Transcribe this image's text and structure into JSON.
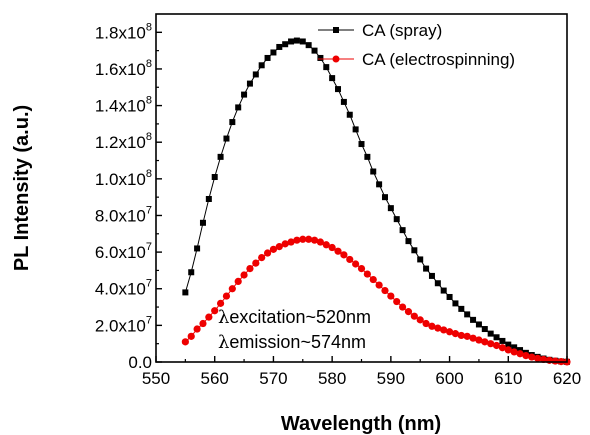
{
  "chart_data": {
    "type": "scatter",
    "title": "",
    "xlabel": "Wavelength (nm)",
    "ylabel": "PL Intensity (a.u.)",
    "xlim": [
      550,
      620
    ],
    "ylim": [
      0,
      190000000
    ],
    "x_ticks": [
      550,
      560,
      570,
      580,
      590,
      600,
      610,
      620
    ],
    "y_ticks": [
      0,
      20000000,
      40000000,
      60000000,
      80000000,
      100000000,
      120000000,
      140000000,
      160000000,
      180000000
    ],
    "x_tick_labels": [
      "550",
      "560",
      "570",
      "580",
      "590",
      "600",
      "610",
      "620"
    ],
    "y_tick_labels": [
      {
        "mantissa": "0.0",
        "exp": ""
      },
      {
        "mantissa": "2.0x10",
        "exp": "7"
      },
      {
        "mantissa": "4.0x10",
        "exp": "7"
      },
      {
        "mantissa": "6.0x10",
        "exp": "7"
      },
      {
        "mantissa": "8.0x10",
        "exp": "7"
      },
      {
        "mantissa": "1.0x10",
        "exp": "8"
      },
      {
        "mantissa": "1.2x10",
        "exp": "8"
      },
      {
        "mantissa": "1.4x10",
        "exp": "8"
      },
      {
        "mantissa": "1.6x10",
        "exp": "8"
      },
      {
        "mantissa": "1.8x10",
        "exp": "8"
      }
    ],
    "legend_position": "top-right",
    "series": [
      {
        "name": "CA (spray)",
        "color": "#000000",
        "marker": "square",
        "points": [
          [
            555,
            38000000
          ],
          [
            556,
            49000000
          ],
          [
            557,
            62000000
          ],
          [
            558,
            76000000
          ],
          [
            559,
            89000000
          ],
          [
            560,
            101000000
          ],
          [
            561,
            112000000
          ],
          [
            562,
            122000000
          ],
          [
            563,
            131000000
          ],
          [
            564,
            139000000
          ],
          [
            565,
            146000000
          ],
          [
            566,
            152000000
          ],
          [
            567,
            157000000
          ],
          [
            568,
            162000000
          ],
          [
            569,
            166000000
          ],
          [
            570,
            169000000
          ],
          [
            571,
            172000000
          ],
          [
            572,
            173500000
          ],
          [
            573,
            175000000
          ],
          [
            574,
            175500000
          ],
          [
            575,
            175000000
          ],
          [
            576,
            173000000
          ],
          [
            577,
            170000000
          ],
          [
            578,
            166000000
          ],
          [
            579,
            161000000
          ],
          [
            580,
            155000000
          ],
          [
            581,
            149000000
          ],
          [
            582,
            142000000
          ],
          [
            583,
            135000000
          ],
          [
            584,
            127000000
          ],
          [
            585,
            119000000
          ],
          [
            586,
            112000000
          ],
          [
            587,
            104000000
          ],
          [
            588,
            97000000
          ],
          [
            589,
            90000000
          ],
          [
            590,
            84000000
          ],
          [
            591,
            78000000
          ],
          [
            592,
            72000000
          ],
          [
            593,
            66000000
          ],
          [
            594,
            61000000
          ],
          [
            595,
            56000000
          ],
          [
            596,
            51000000
          ],
          [
            597,
            47000000
          ],
          [
            598,
            43000000
          ],
          [
            599,
            39000000
          ],
          [
            600,
            35500000
          ],
          [
            601,
            32000000
          ],
          [
            602,
            29000000
          ],
          [
            603,
            26000000
          ],
          [
            604,
            23000000
          ],
          [
            605,
            20500000
          ],
          [
            606,
            18000000
          ],
          [
            607,
            15500000
          ],
          [
            608,
            13500000
          ],
          [
            609,
            11500000
          ],
          [
            610,
            9500000
          ],
          [
            611,
            8000000
          ],
          [
            612,
            6500000
          ],
          [
            613,
            5000000
          ],
          [
            614,
            3800000
          ],
          [
            615,
            2800000
          ],
          [
            616,
            1900000
          ],
          [
            617,
            1200000
          ],
          [
            618,
            700000
          ],
          [
            619,
            300000
          ],
          [
            620,
            100000
          ]
        ]
      },
      {
        "name": "CA (electrospinning)",
        "color": "#ee0000",
        "marker": "circle",
        "points": [
          [
            555,
            11000000
          ],
          [
            556,
            14000000
          ],
          [
            557,
            18000000
          ],
          [
            558,
            21000000
          ],
          [
            559,
            24500000
          ],
          [
            560,
            28000000
          ],
          [
            561,
            32000000
          ],
          [
            562,
            36000000
          ],
          [
            563,
            40000000
          ],
          [
            564,
            44000000
          ],
          [
            565,
            47500000
          ],
          [
            566,
            51000000
          ],
          [
            567,
            54000000
          ],
          [
            568,
            57000000
          ],
          [
            569,
            59500000
          ],
          [
            570,
            61500000
          ],
          [
            571,
            63000000
          ],
          [
            572,
            64500000
          ],
          [
            573,
            65500000
          ],
          [
            574,
            66500000
          ],
          [
            575,
            67000000
          ],
          [
            576,
            67000000
          ],
          [
            577,
            66500000
          ],
          [
            578,
            65500000
          ],
          [
            579,
            64000000
          ],
          [
            580,
            62500000
          ],
          [
            581,
            60500000
          ],
          [
            582,
            58500000
          ],
          [
            583,
            56000000
          ],
          [
            584,
            53500000
          ],
          [
            585,
            51000000
          ],
          [
            586,
            48000000
          ],
          [
            587,
            45000000
          ],
          [
            588,
            42000000
          ],
          [
            589,
            39000000
          ],
          [
            590,
            36000000
          ],
          [
            591,
            33000000
          ],
          [
            592,
            30000000
          ],
          [
            593,
            27500000
          ],
          [
            594,
            25000000
          ],
          [
            595,
            23000000
          ],
          [
            596,
            21000000
          ],
          [
            597,
            19500000
          ],
          [
            598,
            18500000
          ],
          [
            599,
            17500000
          ],
          [
            600,
            16500000
          ],
          [
            601,
            15500000
          ],
          [
            602,
            14500000
          ],
          [
            603,
            14000000
          ],
          [
            604,
            13000000
          ],
          [
            605,
            12000000
          ],
          [
            606,
            11000000
          ],
          [
            607,
            10000000
          ],
          [
            608,
            9000000
          ],
          [
            609,
            7800000
          ],
          [
            610,
            6600000
          ],
          [
            611,
            5500000
          ],
          [
            612,
            4500000
          ],
          [
            613,
            3500000
          ],
          [
            614,
            2700000
          ],
          [
            615,
            2000000
          ],
          [
            616,
            1400000
          ],
          [
            617,
            900000
          ],
          [
            618,
            500000
          ],
          [
            619,
            200000
          ],
          [
            620,
            50000
          ]
        ]
      }
    ],
    "annotations": [
      {
        "symbol": "λ",
        "text": "excitation~520nm"
      },
      {
        "symbol": "λ",
        "text": "emission~574nm"
      }
    ]
  }
}
